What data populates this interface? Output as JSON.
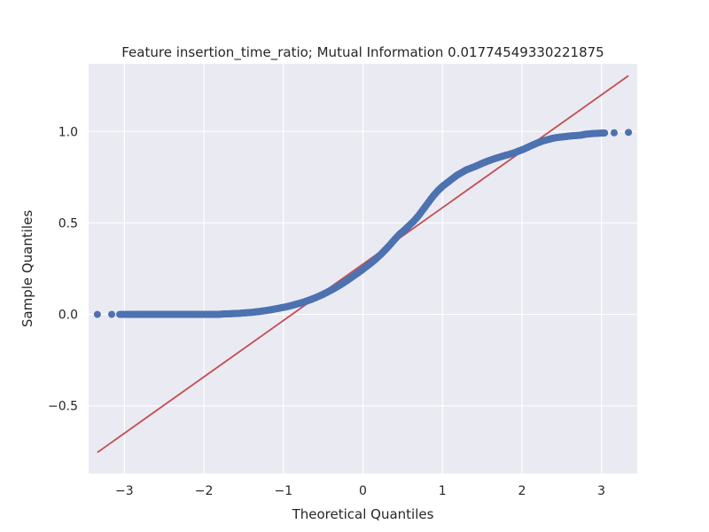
{
  "chart_data": {
    "type": "scatter",
    "title": "Feature insertion_time_ratio; Mutual Information 0.01774549330221875",
    "xlabel": "Theoretical Quantiles",
    "ylabel": "Sample Quantiles",
    "xlim": [
      -3.45,
      3.45
    ],
    "ylim": [
      -0.87,
      1.37
    ],
    "xticks": [
      {
        "value": -3,
        "label": "−3"
      },
      {
        "value": -2,
        "label": "−2"
      },
      {
        "value": -1,
        "label": "−1"
      },
      {
        "value": 0,
        "label": "0"
      },
      {
        "value": 1,
        "label": "1"
      },
      {
        "value": 2,
        "label": "2"
      },
      {
        "value": 3,
        "label": "3"
      }
    ],
    "yticks": [
      {
        "value": -0.5,
        "label": "−0.5"
      },
      {
        "value": 0.0,
        "label": "0.0"
      },
      {
        "value": 0.5,
        "label": "0.5"
      },
      {
        "value": 1.0,
        "label": "1.0"
      }
    ],
    "grid": true,
    "colors": {
      "background": "#eaeaf2",
      "grid": "#ffffff",
      "points": "#4c72b0",
      "line": "#c44e52"
    },
    "reference_line": {
      "x": [
        -3.34,
        3.34
      ],
      "y": [
        -0.755,
        1.305
      ]
    },
    "series": [
      {
        "x": [
          -3.34,
          -3.16,
          -3.06,
          -2.97,
          -2.9,
          -2.84,
          -2.78,
          -2.72,
          -2.66,
          -2.6,
          -2.54,
          -2.48,
          -2.42,
          -2.36,
          -2.3,
          -2.24,
          -2.18,
          -2.12,
          -2.06,
          -2.0,
          -1.94,
          -1.88,
          -1.82,
          -1.76,
          -1.7,
          -1.64,
          -1.58,
          -1.52,
          -1.46,
          -1.4,
          -1.34,
          -1.28,
          -1.22,
          -1.16,
          -1.1,
          -1.04,
          -0.98,
          -0.92,
          -0.86,
          -0.8,
          -0.74,
          -0.68,
          -0.62,
          -0.56,
          -0.5,
          -0.44,
          -0.38,
          -0.32,
          -0.26,
          -0.2,
          -0.14,
          -0.08,
          -0.02,
          0.04,
          0.1,
          0.16,
          0.22,
          0.28,
          0.34,
          0.4,
          0.46,
          0.52,
          0.58,
          0.64,
          0.7,
          0.76,
          0.82,
          0.88,
          0.94,
          1.0,
          1.06,
          1.12,
          1.18,
          1.24,
          1.3,
          1.36,
          1.42,
          1.48,
          1.54,
          1.6,
          1.66,
          1.72,
          1.78,
          1.84,
          1.9,
          1.96,
          2.02,
          2.08,
          2.14,
          2.2,
          2.26,
          2.32,
          2.38,
          2.44,
          2.5,
          2.56,
          2.62,
          2.68,
          2.74,
          2.8,
          2.87,
          2.95,
          3.04,
          3.16,
          3.34
        ],
        "y": [
          0.0,
          0.0,
          0.0,
          0.0,
          0.0,
          0.0,
          0.0,
          0.0,
          0.0,
          0.0,
          0.0,
          0.0,
          0.0,
          0.0,
          0.0,
          0.0,
          0.0,
          0.0,
          0.0,
          0.0,
          0.0,
          0.0,
          0.0,
          0.002,
          0.003,
          0.004,
          0.005,
          0.007,
          0.009,
          0.011,
          0.014,
          0.017,
          0.021,
          0.025,
          0.03,
          0.035,
          0.04,
          0.046,
          0.053,
          0.06,
          0.068,
          0.077,
          0.087,
          0.098,
          0.11,
          0.123,
          0.137,
          0.152,
          0.168,
          0.185,
          0.203,
          0.221,
          0.24,
          0.26,
          0.28,
          0.302,
          0.326,
          0.352,
          0.38,
          0.41,
          0.438,
          0.46,
          0.485,
          0.51,
          0.54,
          0.575,
          0.61,
          0.645,
          0.675,
          0.7,
          0.72,
          0.74,
          0.76,
          0.775,
          0.79,
          0.8,
          0.81,
          0.822,
          0.833,
          0.843,
          0.852,
          0.86,
          0.868,
          0.875,
          0.883,
          0.893,
          0.903,
          0.915,
          0.927,
          0.938,
          0.948,
          0.955,
          0.962,
          0.967,
          0.97,
          0.973,
          0.976,
          0.978,
          0.98,
          0.985,
          0.988,
          0.99,
          0.992,
          0.993,
          0.995
        ]
      }
    ]
  }
}
